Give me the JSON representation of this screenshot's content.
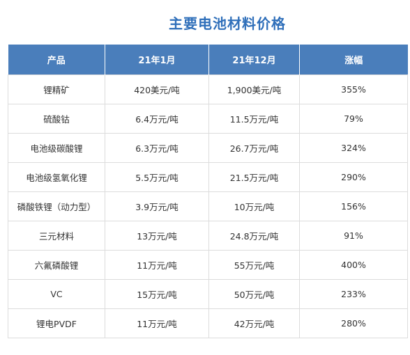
{
  "title": "主要电池材料价格",
  "table": {
    "headers": [
      "产品",
      "21年1月",
      "21年12月",
      "涨幅"
    ],
    "rows": [
      [
        "锂精矿",
        "420美元/吨",
        "1,900美元/吨",
        "355%"
      ],
      [
        "硫酸钴",
        "6.4万元/吨",
        "11.5万元/吨",
        "79%"
      ],
      [
        "电池级碳酸锂",
        "6.3万元/吨",
        "26.7万元/吨",
        "324%"
      ],
      [
        "电池级氢氧化锂",
        "5.5万元/吨",
        "21.5万元/吨",
        "290%"
      ],
      [
        "磷酸铁锂（动力型）",
        "3.9万元/吨",
        "10万元/吨",
        "156%"
      ],
      [
        "三元材料",
        "13万元/吨",
        "24.8万元/吨",
        "91%"
      ],
      [
        "六氟磷酸锂",
        "11万元/吨",
        "55万元/吨",
        "400%"
      ],
      [
        "VC",
        "15万元/吨",
        "50万元/吨",
        "233%"
      ],
      [
        "锂电PVDF",
        "11万元/吨",
        "42万元/吨",
        "280%"
      ]
    ]
  },
  "colors": {
    "title": "#2f6fba",
    "header_bg": "#4a7ebb",
    "header_text": "#ffffff",
    "border": "#dcdcdc"
  }
}
